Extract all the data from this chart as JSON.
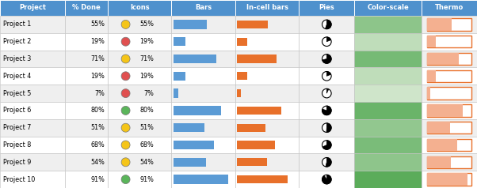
{
  "projects": [
    "Project 1",
    "Project 2",
    "Project 3",
    "Project 4",
    "Project 5",
    "Project 6",
    "Project 7",
    "Project 8",
    "Project 9",
    "Project 10"
  ],
  "values": [
    55,
    19,
    71,
    19,
    7,
    80,
    51,
    68,
    54,
    91
  ],
  "icon_colors": [
    "#f5c518",
    "#e05050",
    "#f5c518",
    "#e05050",
    "#e05050",
    "#5ab55a",
    "#f5c518",
    "#f5c518",
    "#f5c518",
    "#5ab55a"
  ],
  "header_bg": "#4f91cd",
  "header_fg": "#ffffff",
  "row_bg_even": "#efefef",
  "row_bg_odd": "#ffffff",
  "bar_color": "#5b9bd5",
  "incell_color": "#e8702a",
  "thermo_fill": "#f4b090",
  "thermo_border": "#e8702a",
  "headers": [
    "Project",
    "% Done",
    "Icons",
    "Bars",
    "In-cell bars",
    "Pies",
    "Color-scale",
    "Thermo"
  ],
  "colorscale_vals": [
    55,
    19,
    71,
    19,
    7,
    80,
    51,
    68,
    54,
    91
  ],
  "fig_width": 6.02,
  "fig_height": 2.38,
  "dpi": 100
}
